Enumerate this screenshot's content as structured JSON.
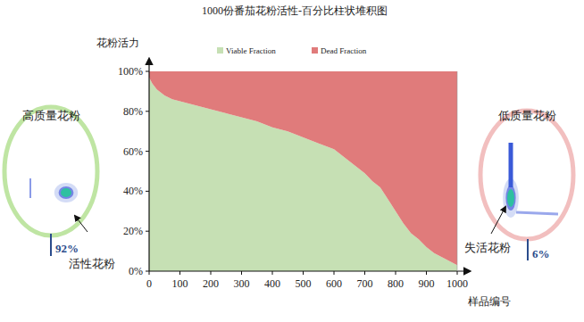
{
  "chart_data": {
    "type": "area",
    "title": "1000份番茄花粉活性-百分比柱状堆积图",
    "x_label": "样品编号",
    "y_label": "花粉活力",
    "stacked": true,
    "grid": false,
    "legend": "top",
    "x": [
      0,
      10,
      25,
      50,
      75,
      100,
      150,
      200,
      250,
      300,
      350,
      400,
      450,
      500,
      550,
      600,
      625,
      650,
      675,
      700,
      725,
      750,
      775,
      800,
      825,
      850,
      875,
      900,
      925,
      950,
      975,
      1000
    ],
    "series": [
      {
        "name": "Viable Fraction",
        "color": "#c6e0b4",
        "values": [
          97,
          94,
          91,
          88,
          86,
          85,
          83,
          81,
          79,
          77,
          75,
          72,
          70,
          67,
          64,
          61,
          58,
          55,
          52,
          49,
          45,
          42,
          36,
          30,
          24,
          19,
          16,
          12,
          9,
          7,
          5,
          3
        ]
      },
      {
        "name": "Dead Fraction",
        "color": "#e07b7b",
        "values": [
          3,
          6,
          9,
          12,
          14,
          15,
          17,
          19,
          21,
          23,
          25,
          28,
          30,
          33,
          36,
          39,
          42,
          45,
          48,
          51,
          55,
          58,
          64,
          70,
          76,
          81,
          84,
          88,
          91,
          93,
          95,
          97
        ]
      }
    ],
    "xlim": [
      0,
      1000
    ],
    "xticks": [
      0,
      100,
      200,
      300,
      400,
      500,
      600,
      700,
      800,
      900,
      1000
    ],
    "ylim": [
      0,
      100
    ],
    "yticks": [
      {
        "value": 0,
        "label": "0%"
      },
      {
        "value": 20,
        "label": "20%"
      },
      {
        "value": 40,
        "label": "40%"
      },
      {
        "value": 60,
        "label": "60%"
      },
      {
        "value": 80,
        "label": "80%"
      },
      {
        "value": 100,
        "label": "100%"
      }
    ],
    "annotations": [
      {
        "text": "高质量花粉"
      },
      {
        "text": "92%"
      },
      {
        "text": "活性花粉"
      },
      {
        "text": "低质量花粉"
      },
      {
        "text": "6%"
      },
      {
        "text": "失活花粉"
      }
    ]
  }
}
